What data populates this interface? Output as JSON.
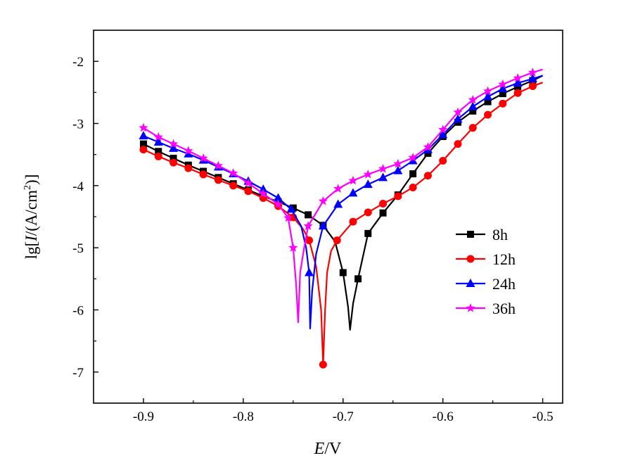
{
  "chart_data": {
    "type": "line",
    "title": "",
    "xlabel_italic": "E",
    "xlabel_rest": "/V",
    "ylabel_prefix": "lg[",
    "ylabel_italic": "I",
    "ylabel_unit": "/(A/cm",
    "ylabel_sup": "2",
    "ylabel_suffix": ")]",
    "xlim": [
      -0.95,
      -0.48
    ],
    "ylim": [
      -7.5,
      -1.5
    ],
    "x_ticks": [
      -0.9,
      -0.8,
      -0.7,
      -0.6,
      -0.5
    ],
    "x_tick_labels": [
      "-0.9",
      "-0.8",
      "-0.7",
      "-0.6",
      "-0.5"
    ],
    "y_ticks": [
      -7,
      -6,
      -5,
      -4,
      -3,
      -2
    ],
    "y_tick_labels": [
      "-7",
      "-6",
      "-5",
      "-4",
      "-3",
      "-2"
    ],
    "grid": false,
    "legend_position": "right-middle",
    "series": [
      {
        "name": "8h",
        "color": "#000000",
        "marker": "square",
        "x": [
          -0.9,
          -0.885,
          -0.87,
          -0.855,
          -0.84,
          -0.825,
          -0.81,
          -0.795,
          -0.78,
          -0.765,
          -0.75,
          -0.735,
          -0.72,
          -0.708,
          -0.7,
          -0.695,
          -0.693,
          -0.69,
          -0.685,
          -0.675,
          -0.66,
          -0.645,
          -0.63,
          -0.615,
          -0.6,
          -0.585,
          -0.57,
          -0.555,
          -0.54,
          -0.525,
          -0.51,
          -0.5
        ],
        "y": [
          -3.33,
          -3.45,
          -3.56,
          -3.67,
          -3.77,
          -3.87,
          -3.97,
          -4.07,
          -4.17,
          -4.26,
          -4.36,
          -4.47,
          -4.64,
          -4.9,
          -5.4,
          -5.95,
          -6.32,
          -5.9,
          -5.5,
          -4.77,
          -4.44,
          -4.15,
          -3.81,
          -3.48,
          -3.21,
          -2.98,
          -2.8,
          -2.65,
          -2.52,
          -2.41,
          -2.31,
          -2.23
        ],
        "markers": [
          0,
          1,
          2,
          3,
          4,
          5,
          6,
          7,
          8,
          9,
          10,
          11,
          12,
          14,
          18,
          19,
          20,
          21,
          22,
          23,
          24,
          25,
          26,
          27,
          28,
          29,
          30
        ]
      },
      {
        "name": "12h",
        "color": "#ff0000",
        "marker": "circle",
        "x": [
          -0.9,
          -0.885,
          -0.87,
          -0.855,
          -0.84,
          -0.825,
          -0.81,
          -0.795,
          -0.78,
          -0.765,
          -0.75,
          -0.74,
          -0.734,
          -0.727,
          -0.722,
          -0.72,
          -0.718,
          -0.716,
          -0.712,
          -0.706,
          -0.69,
          -0.675,
          -0.66,
          -0.645,
          -0.63,
          -0.615,
          -0.6,
          -0.585,
          -0.57,
          -0.555,
          -0.54,
          -0.525,
          -0.51,
          -0.5
        ],
        "y": [
          -3.42,
          -3.53,
          -3.63,
          -3.72,
          -3.82,
          -3.91,
          -4.0,
          -4.09,
          -4.2,
          -4.33,
          -4.51,
          -4.7,
          -4.88,
          -5.3,
          -6.0,
          -6.88,
          -6.0,
          -5.4,
          -5.05,
          -4.88,
          -4.58,
          -4.43,
          -4.29,
          -4.17,
          -4.03,
          -3.84,
          -3.6,
          -3.33,
          -3.07,
          -2.86,
          -2.68,
          -2.51,
          -2.4,
          -2.34
        ],
        "markers": [
          0,
          1,
          2,
          3,
          4,
          5,
          6,
          7,
          8,
          9,
          10,
          12,
          15,
          19,
          20,
          21,
          22,
          23,
          24,
          25,
          26,
          27,
          28,
          29,
          30,
          31,
          32
        ]
      },
      {
        "name": "24h",
        "color": "#0000ff",
        "marker": "triangle",
        "x": [
          -0.9,
          -0.885,
          -0.87,
          -0.855,
          -0.84,
          -0.825,
          -0.81,
          -0.795,
          -0.78,
          -0.765,
          -0.752,
          -0.742,
          -0.737,
          -0.734,
          -0.733,
          -0.731,
          -0.727,
          -0.72,
          -0.705,
          -0.69,
          -0.675,
          -0.66,
          -0.645,
          -0.63,
          -0.615,
          -0.6,
          -0.585,
          -0.57,
          -0.555,
          -0.54,
          -0.525,
          -0.51,
          -0.5
        ],
        "y": [
          -3.2,
          -3.3,
          -3.4,
          -3.49,
          -3.59,
          -3.7,
          -3.81,
          -3.93,
          -4.06,
          -4.2,
          -4.38,
          -4.65,
          -5.0,
          -5.4,
          -6.3,
          -5.7,
          -5.1,
          -4.65,
          -4.3,
          -4.12,
          -3.98,
          -3.87,
          -3.76,
          -3.6,
          -3.42,
          -3.18,
          -2.93,
          -2.73,
          -2.57,
          -2.44,
          -2.35,
          -2.28,
          -2.23
        ],
        "markers": [
          0,
          1,
          2,
          3,
          4,
          5,
          6,
          7,
          8,
          9,
          10,
          13,
          17,
          18,
          19,
          20,
          21,
          22,
          23,
          24,
          25,
          26,
          27,
          28,
          29,
          30,
          31
        ]
      },
      {
        "name": "36h",
        "color": "#ff00ff",
        "marker": "star",
        "x": [
          -0.9,
          -0.885,
          -0.87,
          -0.855,
          -0.84,
          -0.825,
          -0.81,
          -0.795,
          -0.78,
          -0.765,
          -0.755,
          -0.75,
          -0.747,
          -0.745,
          -0.743,
          -0.739,
          -0.735,
          -0.72,
          -0.705,
          -0.69,
          -0.675,
          -0.66,
          -0.645,
          -0.63,
          -0.615,
          -0.6,
          -0.585,
          -0.57,
          -0.555,
          -0.54,
          -0.525,
          -0.51,
          -0.5
        ],
        "y": [
          -3.07,
          -3.22,
          -3.33,
          -3.44,
          -3.56,
          -3.68,
          -3.8,
          -3.96,
          -4.13,
          -4.3,
          -4.52,
          -5.0,
          -5.6,
          -6.2,
          -5.4,
          -5.0,
          -4.65,
          -4.25,
          -4.05,
          -3.92,
          -3.82,
          -3.73,
          -3.65,
          -3.55,
          -3.38,
          -3.1,
          -2.82,
          -2.62,
          -2.48,
          -2.37,
          -2.27,
          -2.18,
          -2.13
        ],
        "markers": [
          0,
          1,
          2,
          3,
          4,
          5,
          6,
          7,
          8,
          9,
          10,
          11,
          16,
          17,
          18,
          19,
          20,
          21,
          22,
          23,
          24,
          25,
          26,
          27,
          28,
          29,
          30,
          31
        ]
      }
    ]
  }
}
